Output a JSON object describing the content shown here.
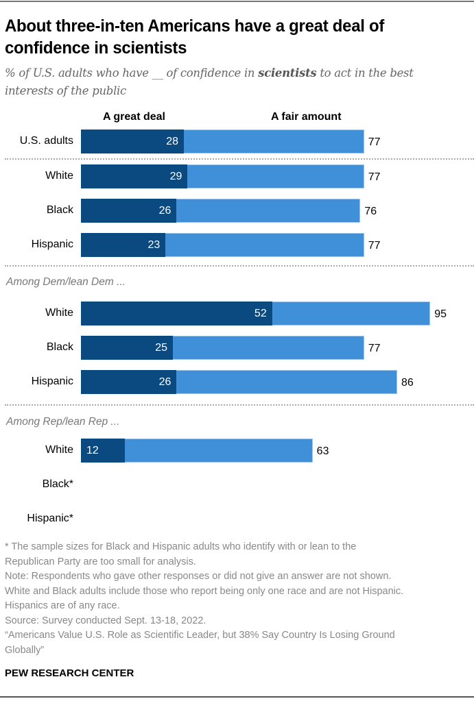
{
  "title": [
    "About three-in-ten Americans have a great deal of",
    "confidence in scientists"
  ],
  "subtitle": {
    "line1_pre": "% of U.S. adults who have __ of confidence in ",
    "line1_bold": "scientists",
    "line1_post": " to act in the best",
    "line2": "interests of the public"
  },
  "colors": {
    "great_deal": "#0b4a80",
    "fair_amount": "#3f8fd9"
  },
  "chart_data": {
    "type": "bar",
    "orientation": "horizontal",
    "stacked": true,
    "title": "About three-in-ten Americans have a great deal of confidence in scientists",
    "legend": [
      "A great deal",
      "A fair amount"
    ],
    "legend_placement": "top",
    "xlim": [
      0,
      100
    ],
    "groups": [
      {
        "label": "",
        "rows": [
          {
            "category": "U.S. adults",
            "great_deal": 28,
            "total": 77
          }
        ]
      },
      {
        "label": "",
        "rows": [
          {
            "category": "White",
            "great_deal": 29,
            "total": 77
          },
          {
            "category": "Black",
            "great_deal": 26,
            "total": 76
          },
          {
            "category": "Hispanic",
            "great_deal": 23,
            "total": 77
          }
        ]
      },
      {
        "label": "Among Dem/lean Dem ...",
        "rows": [
          {
            "category": "White",
            "great_deal": 52,
            "total": 95
          },
          {
            "category": "Black",
            "great_deal": 25,
            "total": 77
          },
          {
            "category": "Hispanic",
            "great_deal": 26,
            "total": 86
          }
        ]
      },
      {
        "label": "Among Rep/lean Rep ...",
        "rows": [
          {
            "category": "White",
            "great_deal": 12,
            "total": 63
          },
          {
            "category": "Black*",
            "great_deal": null,
            "total": null
          },
          {
            "category": "Hispanic*",
            "great_deal": null,
            "total": null
          }
        ]
      }
    ]
  },
  "notes": [
    "* The sample sizes for Black and Hispanic adults who identify with or lean to the",
    "Republican Party are too small for analysis.",
    "Note: Respondents who gave other responses or did not give an answer are not shown.",
    "White and Black adults include those who report being only one race and are not Hispanic.",
    "Hispanics are of any race.",
    "Source: Survey conducted Sept. 13-18, 2022.",
    "“Americans Value U.S. Role as Scientific Leader, but 38% Say Country Is Losing Ground",
    "Globally”"
  ],
  "source_org": "PEW RESEARCH CENTER"
}
